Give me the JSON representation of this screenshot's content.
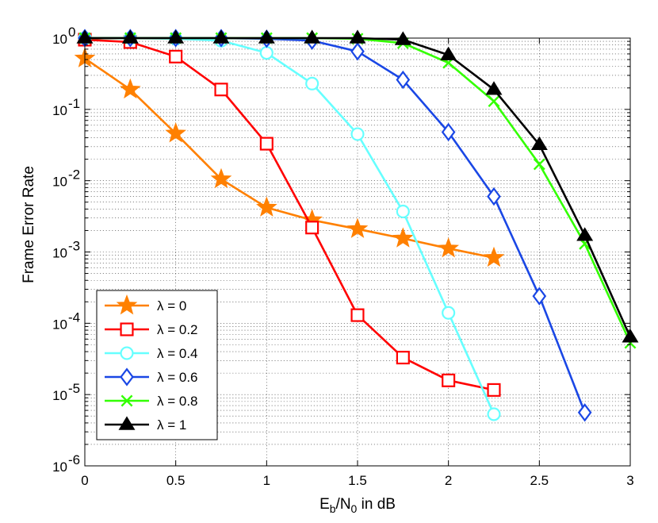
{
  "chart_data": {
    "type": "line",
    "title": "",
    "xlabel": {
      "main": "E",
      "sub1": "b",
      "mid": "/N",
      "sub2": "0",
      "tail": " in dB"
    },
    "ylabel": "Frame Error Rate",
    "xscale": "linear",
    "yscale": "log",
    "xlim": [
      0,
      3
    ],
    "ylim": [
      1e-06,
      1
    ],
    "grid": true,
    "legend_position": "bottom-left",
    "x_ticks": [
      "0",
      "0.5",
      "1",
      "1.5",
      "2",
      "2.5",
      "3"
    ],
    "y_ticks": [
      {
        "base": "10",
        "exp": "0"
      },
      {
        "base": "10",
        "exp": "-1"
      },
      {
        "base": "10",
        "exp": "-2"
      },
      {
        "base": "10",
        "exp": "-3"
      },
      {
        "base": "10",
        "exp": "-4"
      },
      {
        "base": "10",
        "exp": "-5"
      },
      {
        "base": "10",
        "exp": "-6"
      }
    ],
    "series": [
      {
        "name": "λ = 0",
        "color": "#ff8000",
        "marker": "star",
        "x": [
          0,
          0.25,
          0.5,
          0.75,
          1,
          1.25,
          1.5,
          1.75,
          2,
          2.25
        ],
        "y": [
          0.52,
          0.19,
          0.046,
          0.0105,
          0.0042,
          0.0028,
          0.0021,
          0.00155,
          0.00112,
          0.00083
        ]
      },
      {
        "name": "λ = 0.2",
        "color": "#ff0000",
        "marker": "square",
        "x": [
          0,
          0.25,
          0.5,
          0.75,
          1,
          1.25,
          1.5,
          1.75,
          2,
          2.25
        ],
        "y": [
          0.95,
          0.88,
          0.55,
          0.19,
          0.033,
          0.0022,
          0.00013,
          3.3e-05,
          1.58e-05,
          1.16e-05
        ]
      },
      {
        "name": "λ = 0.4",
        "color": "#66ffff",
        "marker": "circle",
        "x": [
          0,
          0.25,
          0.5,
          0.75,
          1,
          1.25,
          1.5,
          1.75,
          2,
          2.25
        ],
        "y": [
          1,
          1,
          0.98,
          0.92,
          0.62,
          0.23,
          0.045,
          0.0037,
          0.00014,
          5.3e-06
        ]
      },
      {
        "name": "λ = 0.6",
        "color": "#1a47e5",
        "marker": "diamond",
        "x": [
          0,
          0.25,
          0.5,
          0.75,
          1,
          1.25,
          1.5,
          1.75,
          2,
          2.25,
          2.5,
          2.75
        ],
        "y": [
          1,
          1,
          1,
          1,
          0.98,
          0.92,
          0.65,
          0.26,
          0.048,
          0.006,
          0.00024,
          5.6e-06
        ]
      },
      {
        "name": "λ = 0.8",
        "color": "#33ff00",
        "marker": "x",
        "x": [
          0,
          0.25,
          0.5,
          0.75,
          1,
          1.25,
          1.5,
          1.75,
          2,
          2.25,
          2.5,
          2.75,
          3
        ],
        "y": [
          1,
          1,
          1,
          1,
          1,
          1,
          0.98,
          0.85,
          0.45,
          0.13,
          0.017,
          0.0013,
          5.3e-05
        ]
      },
      {
        "name": "λ = 1",
        "color": "#000000",
        "marker": "triangle",
        "x": [
          0,
          0.25,
          0.5,
          0.75,
          1,
          1.25,
          1.5,
          1.75,
          2,
          2.25,
          2.5,
          2.75,
          3
        ],
        "y": [
          1,
          1,
          1,
          1,
          1,
          1,
          1,
          0.95,
          0.58,
          0.19,
          0.032,
          0.0017,
          6.4e-05
        ]
      }
    ]
  }
}
